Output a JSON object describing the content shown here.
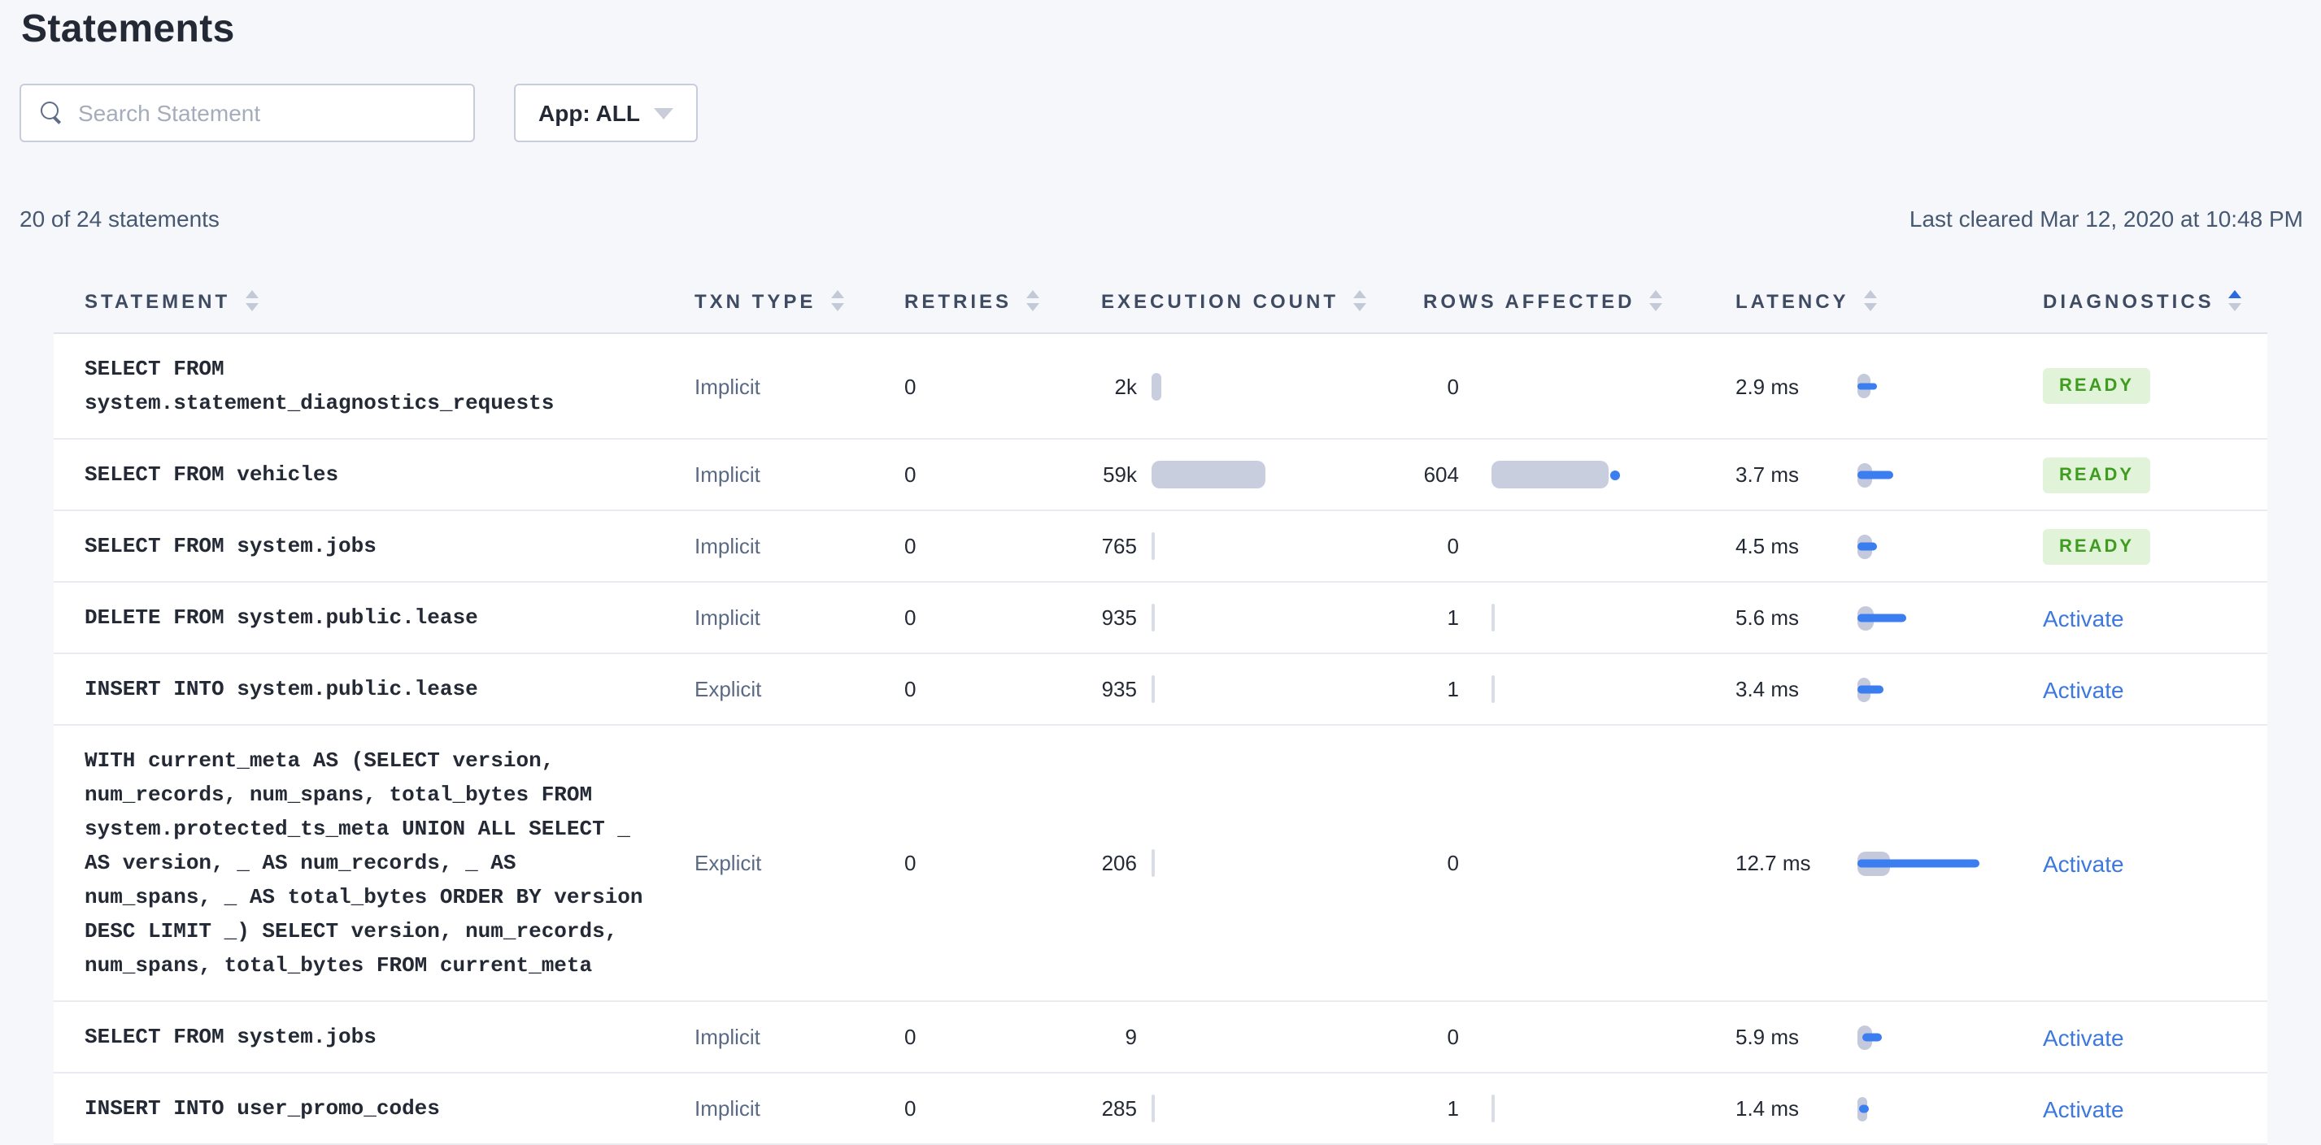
{
  "page": {
    "title": "Statements",
    "summary": "20 of 24 statements",
    "last_cleared": "Last cleared Mar 12, 2020 at 10:48 PM"
  },
  "toolbar": {
    "search_placeholder": "Search Statement",
    "app_filter_label": "App: ALL"
  },
  "colors": {
    "page_background": "#F5F7FA",
    "link_blue": "#3C78DD",
    "bar_blue": "#3B7EF0",
    "bar_gray": "#C9CEDF",
    "ready_badge_bg": "#E1F3D8",
    "ready_badge_text": "#3F9C20",
    "sort_active": "#2B6BE0"
  },
  "table": {
    "columns": [
      "STATEMENT",
      "TXN TYPE",
      "RETRIES",
      "EXECUTION COUNT",
      "ROWS AFFECTED",
      "LATENCY",
      "DIAGNOSTICS"
    ],
    "sort": {
      "column": "DIAGNOSTICS",
      "direction": "asc"
    },
    "rows": [
      {
        "statement": "SELECT FROM\nsystem.statement_diagnostics_requests",
        "txn_type": "Implicit",
        "retries": "0",
        "execution_count": "2k",
        "exec_bar_w": 6,
        "rows_affected": "0",
        "rows_bar_w": 0,
        "rows_dot": false,
        "latency": "2.9 ms",
        "lat_cap_w": 8,
        "lat_bar_w": 12,
        "lat_bar_off": 0,
        "diagnostics": {
          "kind": "badge",
          "label": "READY"
        }
      },
      {
        "statement": "SELECT FROM vehicles",
        "txn_type": "Implicit",
        "retries": "0",
        "execution_count": "59k",
        "exec_bar_w": 70,
        "rows_affected": "604",
        "rows_bar_w": 72,
        "rows_dot": true,
        "latency": "3.7 ms",
        "lat_cap_w": 9,
        "lat_bar_w": 22,
        "lat_bar_off": 0,
        "diagnostics": {
          "kind": "badge",
          "label": "READY"
        }
      },
      {
        "statement": "SELECT FROM system.jobs",
        "txn_type": "Implicit",
        "retries": "0",
        "execution_count": "765",
        "exec_bar_w": 2,
        "rows_affected": "0",
        "rows_bar_w": 0,
        "rows_dot": false,
        "latency": "4.5 ms",
        "lat_cap_w": 9,
        "lat_bar_w": 12,
        "lat_bar_off": 0,
        "diagnostics": {
          "kind": "badge",
          "label": "READY"
        }
      },
      {
        "statement": "DELETE FROM system.public.lease",
        "txn_type": "Implicit",
        "retries": "0",
        "execution_count": "935",
        "exec_bar_w": 2,
        "rows_affected": "1",
        "rows_bar_w": 2,
        "rows_dot": false,
        "latency": "5.6 ms",
        "lat_cap_w": 10,
        "lat_bar_w": 30,
        "lat_bar_off": 0,
        "diagnostics": {
          "kind": "link",
          "label": "Activate"
        }
      },
      {
        "statement": "INSERT INTO system.public.lease",
        "txn_type": "Explicit",
        "retries": "0",
        "execution_count": "935",
        "exec_bar_w": 2,
        "rows_affected": "1",
        "rows_bar_w": 2,
        "rows_dot": false,
        "latency": "3.4 ms",
        "lat_cap_w": 8,
        "lat_bar_w": 16,
        "lat_bar_off": 0,
        "diagnostics": {
          "kind": "link",
          "label": "Activate"
        }
      },
      {
        "statement": "WITH current_meta AS (SELECT version,\nnum_records, num_spans, total_bytes FROM\nsystem.protected_ts_meta UNION ALL SELECT _\nAS version, _ AS num_records, _ AS\nnum_spans, _ AS total_bytes ORDER BY version\nDESC LIMIT _) SELECT version, num_records,\nnum_spans, total_bytes FROM current_meta",
        "txn_type": "Explicit",
        "retries": "0",
        "execution_count": "206",
        "exec_bar_w": 2,
        "rows_affected": "0",
        "rows_bar_w": 0,
        "rows_dot": false,
        "latency": "12.7 ms",
        "lat_cap_w": 20,
        "lat_bar_w": 75,
        "lat_bar_off": 0,
        "diagnostics": {
          "kind": "link",
          "label": "Activate"
        }
      },
      {
        "statement": "SELECT FROM system.jobs",
        "txn_type": "Implicit",
        "retries": "0",
        "execution_count": "9",
        "exec_bar_w": 0,
        "rows_affected": "0",
        "rows_bar_w": 0,
        "rows_dot": false,
        "latency": "5.9 ms",
        "lat_cap_w": 9,
        "lat_bar_w": 12,
        "lat_bar_off": 3,
        "diagnostics": {
          "kind": "link",
          "label": "Activate"
        }
      },
      {
        "statement": "INSERT INTO user_promo_codes",
        "txn_type": "Implicit",
        "retries": "0",
        "execution_count": "285",
        "exec_bar_w": 2,
        "rows_affected": "1",
        "rows_bar_w": 2,
        "rows_dot": false,
        "latency": "1.4 ms",
        "lat_cap_w": 6,
        "lat_bar_w": 6,
        "lat_bar_off": 1,
        "diagnostics": {
          "kind": "link",
          "label": "Activate"
        }
      }
    ]
  }
}
